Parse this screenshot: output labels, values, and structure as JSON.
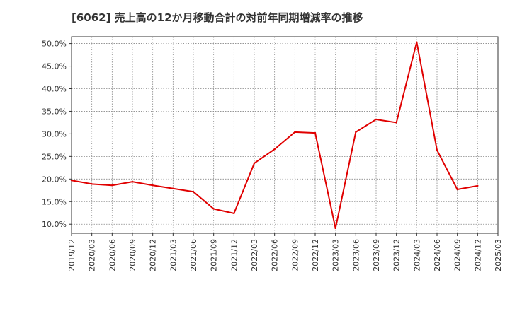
{
  "chart_data": {
    "type": "line",
    "title": "[6062]  売上高の12か月移動合計の対前年同期増減率の推移",
    "xlabel": "",
    "ylabel": "",
    "x_tick_labels": [
      "2019/12",
      "2020/03",
      "2020/06",
      "2020/09",
      "2020/12",
      "2021/03",
      "2021/06",
      "2021/09",
      "2021/12",
      "2022/03",
      "2022/06",
      "2022/09",
      "2022/12",
      "2023/03",
      "2023/06",
      "2023/09",
      "2023/12",
      "2024/03",
      "2024/06",
      "2024/09",
      "2024/12",
      "2025/03"
    ],
    "y_tick_labels": [
      "10.0%",
      "15.0%",
      "20.0%",
      "25.0%",
      "30.0%",
      "35.0%",
      "40.0%",
      "45.0%",
      "50.0%"
    ],
    "y_ticks": [
      10,
      15,
      20,
      25,
      30,
      35,
      40,
      45,
      50
    ],
    "ylim": [
      8.0,
      51.5
    ],
    "grid": true,
    "colors": {
      "line": "#e00000",
      "grid": "#888888",
      "axis": "#333333"
    },
    "series": [
      {
        "name": "増減率",
        "x": [
          "2019/12",
          "2020/03",
          "2020/06",
          "2020/09",
          "2020/12",
          "2021/03",
          "2021/06",
          "2021/09",
          "2021/12",
          "2022/03",
          "2022/06",
          "2022/09",
          "2022/12",
          "2023/03",
          "2023/06",
          "2023/09",
          "2023/12",
          "2024/03",
          "2024/06",
          "2024/09",
          "2024/12"
        ],
        "values": [
          19.7,
          18.9,
          18.6,
          19.4,
          18.6,
          17.9,
          17.2,
          13.4,
          12.4,
          23.5,
          26.6,
          30.4,
          30.2,
          9.1,
          30.4,
          33.2,
          32.5,
          50.3,
          26.4,
          17.7,
          18.5
        ]
      }
    ]
  }
}
